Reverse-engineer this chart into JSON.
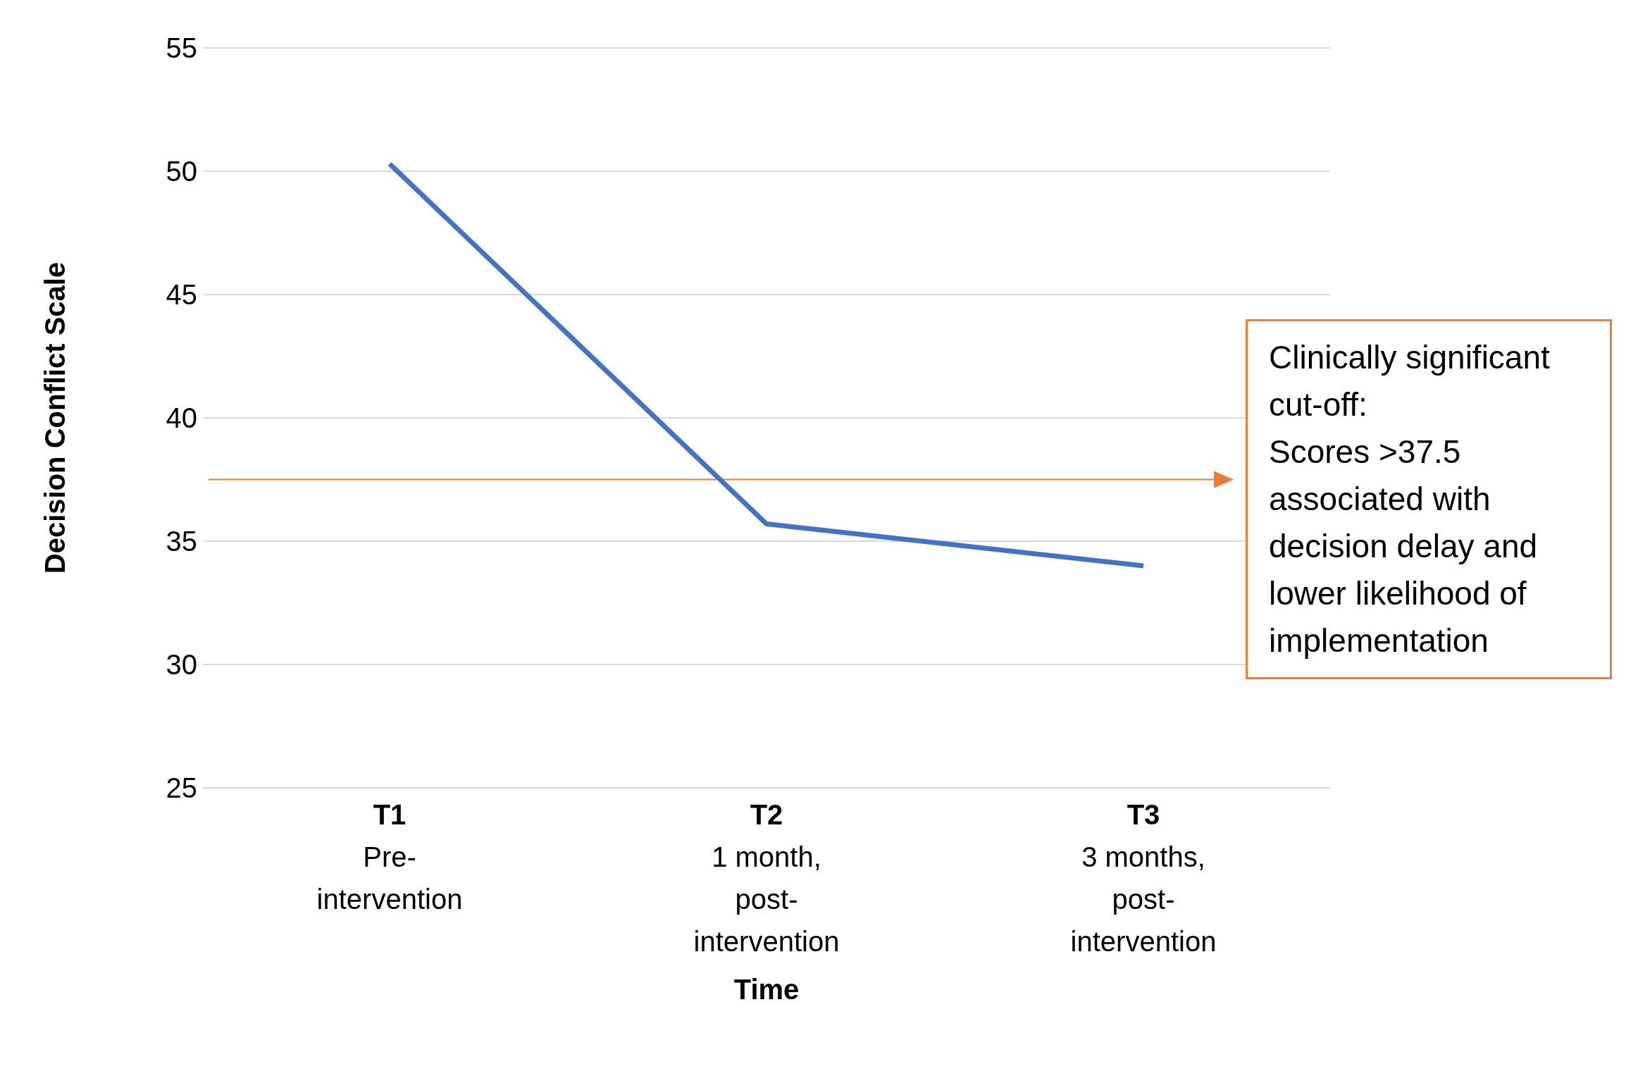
{
  "chart_data": {
    "type": "line",
    "xlabel": "Time",
    "ylabel": "Decision Conflict Scale",
    "categories": [
      "T1\nPre-\nintervention",
      "T2\n1 month,\npost-\nintervention",
      "T3\n3 months,\npost-\nintervention"
    ],
    "series": [
      {
        "color": "#4472c4",
        "values": [
          50.3,
          35.7,
          34.0
        ]
      }
    ],
    "ylim": [
      25,
      55
    ],
    "yticks": [
      25,
      30,
      35,
      40,
      45,
      50,
      55
    ],
    "grid": "y",
    "legend": false,
    "marker": "none",
    "line_style": "solid",
    "ref_lines": [
      {
        "axis": "y",
        "value": 37.5,
        "color": "#ed7d31",
        "label": "Clinically significant\ncut-off:\nScores >37.5\nassociated with\ndecision delay and\nlower likelihood of\nimplementation"
      }
    ]
  }
}
